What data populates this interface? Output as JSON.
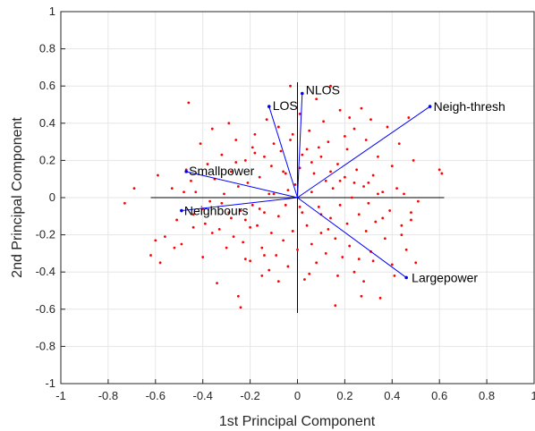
{
  "chart_data": {
    "type": "scatter",
    "title": "",
    "xlabel": "1st Principal Component",
    "ylabel": "2nd Principal Component",
    "xlim": [
      -1,
      1
    ],
    "ylim": [
      -1,
      1
    ],
    "xticks": [
      "-1",
      "-0.8",
      "-0.6",
      "-0.4",
      "-0.2",
      "0",
      "0.2",
      "0.4",
      "0.6",
      "0.8",
      "1"
    ],
    "yticks": [
      "-1",
      "-0.8",
      "-0.6",
      "-0.4",
      "-0.2",
      "0",
      "0.2",
      "0.4",
      "0.6",
      "0.8",
      "1"
    ],
    "grid": true,
    "colors": {
      "points": "#ff0000",
      "vectors": "#0000ff",
      "axes": "#000000",
      "grid": "#e6e6e6"
    },
    "reference_axes": {
      "x": [
        -0.62,
        0.62
      ],
      "y": [
        -0.62,
        0.62
      ]
    },
    "vectors": [
      {
        "label": "NLOS",
        "x": 0.02,
        "y": 0.56
      },
      {
        "label": "LOS",
        "x": -0.12,
        "y": 0.49
      },
      {
        "label": "Neigh-thresh",
        "x": 0.56,
        "y": 0.49
      },
      {
        "label": "Smallpower",
        "x": -0.47,
        "y": 0.14
      },
      {
        "label": "Neighbours",
        "x": -0.49,
        "y": -0.07
      },
      {
        "label": "Largepower",
        "x": 0.46,
        "y": -0.43
      }
    ],
    "points": [
      [
        -0.73,
        -0.03
      ],
      [
        -0.69,
        0.05
      ],
      [
        -0.62,
        -0.31
      ],
      [
        -0.6,
        -0.23
      ],
      [
        -0.59,
        0.12
      ],
      [
        -0.58,
        -0.35
      ],
      [
        -0.56,
        -0.21
      ],
      [
        -0.53,
        0.05
      ],
      [
        -0.51,
        -0.12
      ],
      [
        -0.49,
        -0.25
      ],
      [
        -0.47,
        0.15
      ],
      [
        -0.46,
        0.51
      ],
      [
        -0.45,
        0.09
      ],
      [
        -0.44,
        -0.09
      ],
      [
        -0.43,
        0.03
      ],
      [
        -0.41,
        0.29
      ],
      [
        -0.4,
        -0.32
      ],
      [
        -0.39,
        -0.14
      ],
      [
        -0.38,
        0.18
      ],
      [
        -0.37,
        -0.02
      ],
      [
        -0.36,
        0.37
      ],
      [
        -0.35,
        0.1
      ],
      [
        -0.34,
        -0.46
      ],
      [
        -0.33,
        -0.17
      ],
      [
        -0.32,
        0.23
      ],
      [
        -0.31,
        0.02
      ],
      [
        -0.3,
        -0.27
      ],
      [
        -0.29,
        0.4
      ],
      [
        -0.29,
        -0.08
      ],
      [
        -0.28,
        0.14
      ],
      [
        -0.27,
        -0.21
      ],
      [
        -0.26,
        0.31
      ],
      [
        -0.25,
        -0.53
      ],
      [
        -0.25,
        0.06
      ],
      [
        -0.24,
        -0.59
      ],
      [
        -0.23,
        -0.24
      ],
      [
        -0.22,
        0.2
      ],
      [
        -0.22,
        -0.12
      ],
      [
        -0.21,
        0.08
      ],
      [
        -0.2,
        -0.34
      ],
      [
        -0.19,
        0.27
      ],
      [
        -0.19,
        -0.04
      ],
      [
        -0.18,
        0.34
      ],
      [
        -0.17,
        -0.15
      ],
      [
        -0.16,
        0.11
      ],
      [
        -0.15,
        -0.27
      ],
      [
        -0.14,
        0.22
      ],
      [
        -0.14,
        -0.08
      ],
      [
        -0.13,
        0.42
      ],
      [
        -0.12,
        -0.39
      ],
      [
        -0.11,
        0.17
      ],
      [
        -0.11,
        -0.19
      ],
      [
        -0.1,
        0.02
      ],
      [
        -0.09,
        -0.31
      ],
      [
        -0.08,
        0.38
      ],
      [
        -0.08,
        -0.1
      ],
      [
        -0.07,
        0.25
      ],
      [
        -0.06,
        -0.23
      ],
      [
        -0.05,
        0.13
      ],
      [
        -0.05,
        -0.04
      ],
      [
        -0.04,
        -0.37
      ],
      [
        -0.03,
        0.6
      ],
      [
        -0.03,
        0.31
      ],
      [
        -0.02,
        -0.18
      ],
      [
        -0.01,
        0.07
      ],
      [
        0.0,
        -0.28
      ],
      [
        0.01,
        0.45
      ],
      [
        0.01,
        0.16
      ],
      [
        0.02,
        -0.08
      ],
      [
        0.03,
        -0.44
      ],
      [
        0.04,
        0.26
      ],
      [
        0.04,
        -0.15
      ],
      [
        0.05,
        0.36
      ],
      [
        0.06,
        0.03
      ],
      [
        0.06,
        -0.25
      ],
      [
        0.07,
        0.13
      ],
      [
        0.08,
        -0.35
      ],
      [
        0.08,
        0.53
      ],
      [
        0.09,
        -0.05
      ],
      [
        0.1,
        0.22
      ],
      [
        0.1,
        -0.19
      ],
      [
        0.11,
        0.41
      ],
      [
        0.12,
        0.09
      ],
      [
        0.12,
        -0.3
      ],
      [
        0.13,
        0.3
      ],
      [
        0.14,
        -0.11
      ],
      [
        0.14,
        0.6
      ],
      [
        0.15,
        0.05
      ],
      [
        0.16,
        -0.58
      ],
      [
        0.16,
        -0.22
      ],
      [
        0.17,
        0.18
      ],
      [
        0.18,
        -0.04
      ],
      [
        0.18,
        0.47
      ],
      [
        0.19,
        -0.32
      ],
      [
        0.2,
        0.11
      ],
      [
        0.21,
        -0.14
      ],
      [
        0.21,
        0.26
      ],
      [
        0.22,
        -0.26
      ],
      [
        0.23,
        0.0
      ],
      [
        0.24,
        0.37
      ],
      [
        0.24,
        -0.4
      ],
      [
        0.25,
        0.15
      ],
      [
        0.26,
        -0.09
      ],
      [
        0.27,
        0.48
      ],
      [
        0.27,
        -0.53
      ],
      [
        0.28,
        0.06
      ],
      [
        0.29,
        -0.18
      ],
      [
        0.29,
        0.31
      ],
      [
        0.3,
        -0.03
      ],
      [
        0.31,
        0.42
      ],
      [
        0.31,
        -0.29
      ],
      [
        0.32,
        0.12
      ],
      [
        0.33,
        -0.13
      ],
      [
        0.34,
        0.22
      ],
      [
        0.35,
        -0.54
      ],
      [
        0.36,
        0.03
      ],
      [
        0.37,
        -0.22
      ],
      [
        0.38,
        0.38
      ],
      [
        0.39,
        -0.07
      ],
      [
        0.4,
        0.17
      ],
      [
        0.41,
        -0.42
      ],
      [
        0.42,
        0.05
      ],
      [
        0.43,
        0.29
      ],
      [
        0.44,
        -0.15
      ],
      [
        0.45,
        0.02
      ],
      [
        0.46,
        -0.28
      ],
      [
        0.47,
        0.43
      ],
      [
        0.48,
        -0.08
      ],
      [
        0.49,
        0.2
      ],
      [
        0.5,
        -0.35
      ],
      [
        0.6,
        0.15
      ],
      [
        0.61,
        0.13
      ],
      [
        0.51,
        -0.02
      ],
      [
        0.48,
        -0.12
      ],
      [
        0.44,
        -0.2
      ],
      [
        0.4,
        -0.36
      ],
      [
        0.36,
        -0.11
      ],
      [
        0.32,
        -0.34
      ],
      [
        0.28,
        -0.45
      ],
      [
        0.24,
        0.08
      ],
      [
        0.2,
        0.33
      ],
      [
        0.17,
        -0.42
      ],
      [
        0.13,
        -0.17
      ],
      [
        0.09,
        0.27
      ],
      [
        0.05,
        -0.41
      ],
      [
        0.01,
        -0.05
      ],
      [
        -0.04,
        0.04
      ],
      [
        -0.08,
        -0.45
      ],
      [
        -0.12,
        0.02
      ],
      [
        -0.16,
        -0.06
      ],
      [
        -0.2,
        -0.16
      ],
      [
        -0.24,
        -0.07
      ],
      [
        -0.28,
        -0.11
      ],
      [
        -0.32,
        -0.03
      ],
      [
        -0.36,
        -0.19
      ],
      [
        -0.4,
        -0.06
      ],
      [
        -0.44,
        -0.16
      ],
      [
        -0.48,
        0.03
      ],
      [
        -0.52,
        -0.27
      ],
      [
        -0.15,
        -0.42
      ],
      [
        0.34,
        0.02
      ],
      [
        0.3,
        0.08
      ],
      [
        0.26,
        -0.33
      ],
      [
        0.22,
        0.43
      ],
      [
        0.18,
        0.09
      ],
      [
        0.14,
        0.14
      ],
      [
        0.1,
        -0.09
      ],
      [
        0.06,
        0.19
      ],
      [
        0.02,
        0.23
      ],
      [
        -0.02,
        0.34
      ],
      [
        -0.06,
        0.14
      ],
      [
        -0.1,
        0.29
      ],
      [
        -0.14,
        -0.31
      ],
      [
        -0.18,
        0.24
      ],
      [
        -0.22,
        -0.33
      ],
      [
        -0.26,
        0.19
      ]
    ]
  }
}
